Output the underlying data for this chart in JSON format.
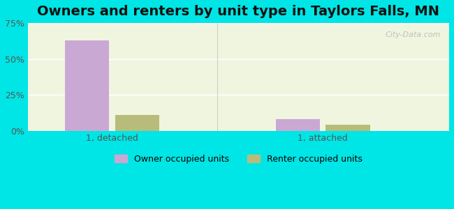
{
  "title": "Owners and renters by unit type in Taylors Falls, MN",
  "categories": [
    "1, detached",
    "1, attached"
  ],
  "owner_values": [
    63,
    8
  ],
  "renter_values": [
    11,
    4
  ],
  "owner_color": "#c9a8d4",
  "renter_color": "#b8bc7a",
  "bar_width": 0.35,
  "ylim": [
    0,
    75
  ],
  "yticks": [
    0,
    25,
    50,
    75
  ],
  "yticklabels": [
    "0%",
    "25%",
    "50%",
    "75%"
  ],
  "legend_owner": "Owner occupied units",
  "legend_renter": "Renter occupied units",
  "watermark": "City-Data.com",
  "bg_color_left": "#f0f5e8",
  "bg_color_right": "#e0f8f5",
  "title_fontsize": 14
}
